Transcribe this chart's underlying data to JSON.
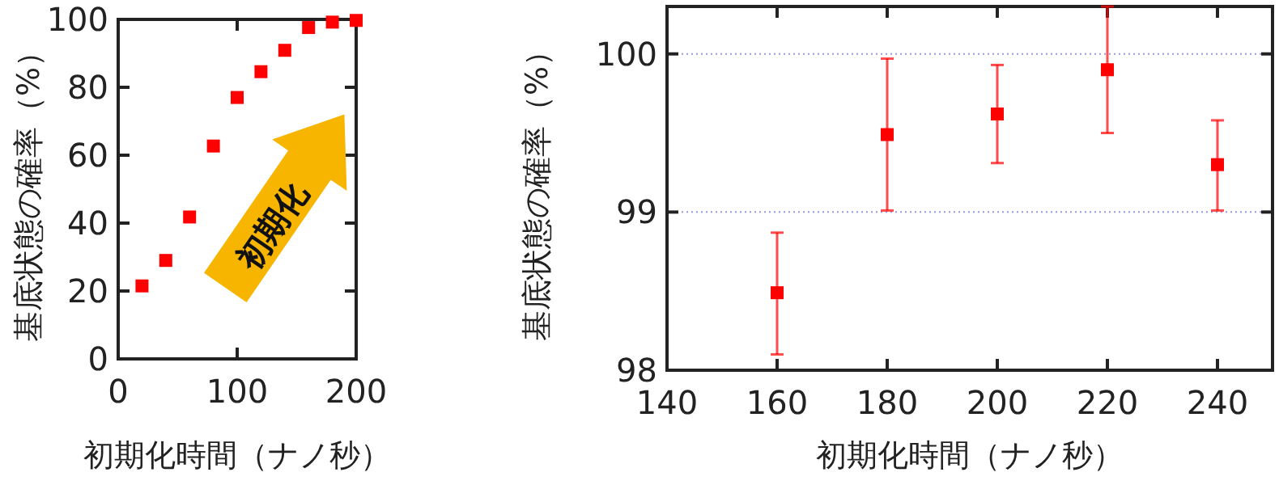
{
  "chart_data": [
    {
      "type": "scatter",
      "xlabel": "初期化時間（ナノ秒）",
      "ylabel": "基底状態の確率（%）",
      "annotations": [
        "初期化"
      ],
      "x": [
        20,
        40,
        60,
        80,
        100,
        120,
        140,
        160,
        180,
        200
      ],
      "values": [
        21.5,
        29,
        41.8,
        62.7,
        77,
        84.6,
        90.9,
        97.6,
        99.2,
        99.7
      ],
      "color": "#ff0000",
      "marker": "square",
      "xlim": [
        0,
        200
      ],
      "ylim": [
        0,
        100
      ],
      "xticks": [
        0,
        100,
        200
      ],
      "yticks": [
        0,
        20,
        40,
        60,
        80,
        100
      ]
    },
    {
      "type": "scatter",
      "xlabel": "初期化時間（ナノ秒）",
      "ylabel": "基底状態の確率（%）",
      "x": [
        160,
        180,
        200,
        220,
        240
      ],
      "values": [
        98.49,
        99.49,
        99.62,
        99.9,
        99.3
      ],
      "errors": [
        [
          98.1,
          98.87
        ],
        [
          99.01,
          99.97
        ],
        [
          99.31,
          99.93
        ],
        [
          99.5,
          100.3
        ],
        [
          99.01,
          99.58
        ]
      ],
      "color": "#ff0000",
      "marker": "square",
      "grid": "y",
      "xlim": [
        140,
        250
      ],
      "ylim": [
        98,
        100.3
      ],
      "xticks": [
        140,
        160,
        180,
        200,
        220,
        240
      ],
      "yticks": [
        98,
        99,
        100
      ]
    }
  ]
}
